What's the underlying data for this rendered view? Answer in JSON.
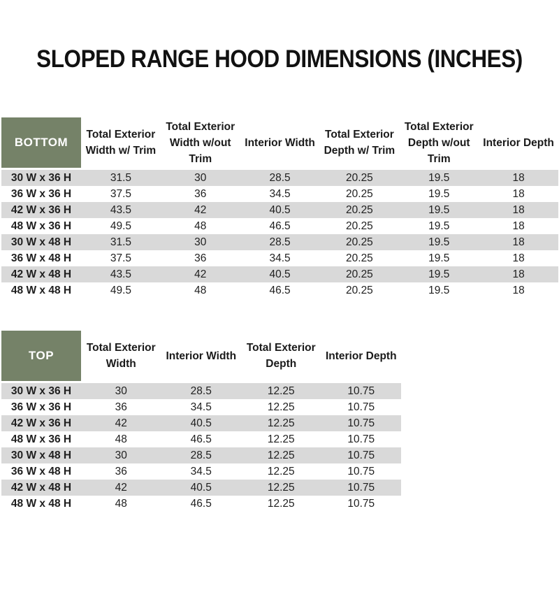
{
  "page": {
    "title": "SLOPED RANGE HOOD DIMENSIONS (INCHES)"
  },
  "colors": {
    "header_green": "#758268",
    "stripe_gray": "#d9d9d9",
    "text_color": "#1f1f1f"
  },
  "bottom_table": {
    "corner_label": "BOTTOM",
    "columns": [
      "Total Exterior Width w/ Trim",
      "Total Exterior Width w/out Trim",
      "Interior Width",
      "Total Exterior Depth w/ Trim",
      "Total Exterior Depth w/out Trim",
      "Interior Depth"
    ],
    "rows": [
      {
        "label": "30 W x 36 H",
        "values": [
          "31.5",
          "30",
          "28.5",
          "20.25",
          "19.5",
          "18"
        ]
      },
      {
        "label": "36 W x 36 H",
        "values": [
          "37.5",
          "36",
          "34.5",
          "20.25",
          "19.5",
          "18"
        ]
      },
      {
        "label": "42 W x 36 H",
        "values": [
          "43.5",
          "42",
          "40.5",
          "20.25",
          "19.5",
          "18"
        ]
      },
      {
        "label": "48 W x 36 H",
        "values": [
          "49.5",
          "48",
          "46.5",
          "20.25",
          "19.5",
          "18"
        ]
      },
      {
        "label": "30 W x 48 H",
        "values": [
          "31.5",
          "30",
          "28.5",
          "20.25",
          "19.5",
          "18"
        ]
      },
      {
        "label": "36 W x 48 H",
        "values": [
          "37.5",
          "36",
          "34.5",
          "20.25",
          "19.5",
          "18"
        ]
      },
      {
        "label": "42 W x 48 H",
        "values": [
          "43.5",
          "42",
          "40.5",
          "20.25",
          "19.5",
          "18"
        ]
      },
      {
        "label": "48 W x 48 H",
        "values": [
          "49.5",
          "48",
          "46.5",
          "20.25",
          "19.5",
          "18"
        ]
      }
    ]
  },
  "top_table": {
    "corner_label": "TOP",
    "columns": [
      "Total Exterior Width",
      "Interior Width",
      "Total Exterior Depth",
      "Interior Depth"
    ],
    "rows": [
      {
        "label": "30 W x 36 H",
        "values": [
          "30",
          "28.5",
          "12.25",
          "10.75"
        ]
      },
      {
        "label": "36 W x 36 H",
        "values": [
          "36",
          "34.5",
          "12.25",
          "10.75"
        ]
      },
      {
        "label": "42 W x 36 H",
        "values": [
          "42",
          "40.5",
          "12.25",
          "10.75"
        ]
      },
      {
        "label": "48 W x 36 H",
        "values": [
          "48",
          "46.5",
          "12.25",
          "10.75"
        ]
      },
      {
        "label": "30 W x 48 H",
        "values": [
          "30",
          "28.5",
          "12.25",
          "10.75"
        ]
      },
      {
        "label": "36 W x 48 H",
        "values": [
          "36",
          "34.5",
          "12.25",
          "10.75"
        ]
      },
      {
        "label": "42 W x 48 H",
        "values": [
          "42",
          "40.5",
          "12.25",
          "10.75"
        ]
      },
      {
        "label": "48 W x 48 H",
        "values": [
          "48",
          "46.5",
          "12.25",
          "10.75"
        ]
      }
    ]
  }
}
